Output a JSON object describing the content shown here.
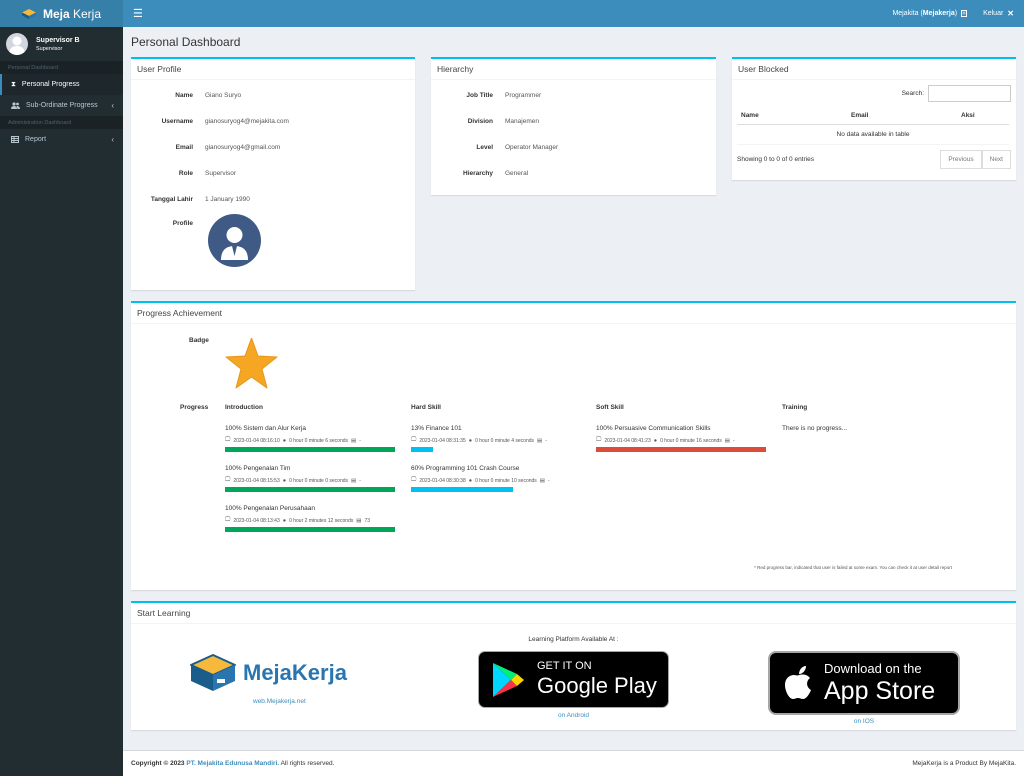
{
  "header": {
    "brand_bold": "Meja",
    "brand_light": "Kerja",
    "account_prefix": "Mejakita (",
    "account_name": "Mejakerja",
    "account_suffix": ")",
    "logout_label": "Keluar"
  },
  "sidebar": {
    "user_name": "Supervisor B",
    "user_role": "Supervisor",
    "section_personal": "Personal Dashboard",
    "section_admin": "Administration Dashboard",
    "items": [
      {
        "label": "Personal Progress",
        "icon": "hourglass-icon"
      },
      {
        "label": "Sub-Ordinate Progress",
        "icon": "users-icon"
      },
      {
        "label": "Report",
        "icon": "table-icon"
      }
    ]
  },
  "page": {
    "title": "Personal Dashboard"
  },
  "user_profile": {
    "title": "User Profile",
    "fields": [
      {
        "label": "Name",
        "value": "Giano Suryo"
      },
      {
        "label": "Username",
        "value": "gianosuryog4@mejakita.com"
      },
      {
        "label": "Email",
        "value": "gianosuryog4@gmail.com"
      },
      {
        "label": "Role",
        "value": "Supervisor"
      },
      {
        "label": "Tanggal Lahir",
        "value": "1 January 1990"
      }
    ],
    "profile_label": "Profile"
  },
  "hierarchy": {
    "title": "Hierarchy",
    "fields": [
      {
        "label": "Job Title",
        "value": "Programmer"
      },
      {
        "label": "Division",
        "value": "Manajemen"
      },
      {
        "label": "Level",
        "value": "Operator Manager"
      },
      {
        "label": "Hierarchy",
        "value": "General"
      }
    ]
  },
  "user_blocked": {
    "title": "User Blocked",
    "search_label": "Search:",
    "search_value": "",
    "columns": [
      "Name",
      "Email",
      "Aksi"
    ],
    "empty": "No data available in table",
    "info": "Showing 0 to 0 of 0 entries",
    "prev": "Previous",
    "next": "Next"
  },
  "progress": {
    "title": "Progress Achievement",
    "badge_label": "Badge",
    "progress_label": "Progress",
    "colors": {
      "green": "#00a65a",
      "blue": "#00c0ef",
      "red": "#dd4b39"
    },
    "columns": [
      {
        "heading": "Introduction",
        "items": [
          {
            "title": "100% Sistem dan Alur Kerja",
            "date": "2023-01-04 08:16:10",
            "duration": "0 hour 0 minute 6 seconds",
            "score": "-",
            "percent": 100,
            "color": "#00a65a"
          },
          {
            "title": "100% Pengenalan Tim",
            "date": "2023-01-04 08:15:53",
            "duration": "0 hour 0 minute 0 seconds",
            "score": "-",
            "percent": 100,
            "color": "#00a65a"
          },
          {
            "title": "100% Pengenalan Perusahaan",
            "date": "2023-01-04 08:13:43",
            "duration": "0 hour 2 minutes 12 seconds",
            "score": "73",
            "percent": 100,
            "color": "#00a65a"
          }
        ]
      },
      {
        "heading": "Hard Skill",
        "items": [
          {
            "title": "13% Finance 101",
            "date": "2023-01-04 08:31:35",
            "duration": "0 hour 0 minute 4 seconds",
            "score": "-",
            "percent": 13,
            "color": "#00c0ef"
          },
          {
            "title": "60% Programming 101 Crash Course",
            "date": "2023-01-04 08:30:38",
            "duration": "0 hour 0 minute 10 seconds",
            "score": "-",
            "percent": 60,
            "color": "#00c0ef"
          }
        ]
      },
      {
        "heading": "Soft Skill",
        "items": [
          {
            "title": "100% Persuasive Communication Skills",
            "date": "2023-01-04 08:41:23",
            "duration": "0 hour 0 minute 16 seconds",
            "score": "-",
            "percent": 100,
            "color": "#dd4b39"
          }
        ]
      },
      {
        "heading": "Training",
        "empty": "There is no progress..."
      }
    ],
    "note": "* Red progress bar, indicated that user is failed at some exam. You can check it at user detail report"
  },
  "start_learning": {
    "title": "Start Learning",
    "available": "Learning Platform Available At :",
    "web_logo": "MejaKerja",
    "web_link": "web.Mejakerja.net",
    "gp_small": "GET IT ON",
    "gp_big": "Google Play",
    "gp_caption": "on Android",
    "as_small": "Download on the",
    "as_big": "App Store",
    "as_caption": "on IOS"
  },
  "footer": {
    "copy_prefix": "Copyright © 2023 ",
    "company": "PT. Mejakita Edunusa Mandiri.",
    "copy_suffix": " All rights reserved.",
    "product": "MejaKerja is a Product By MejaKita."
  }
}
